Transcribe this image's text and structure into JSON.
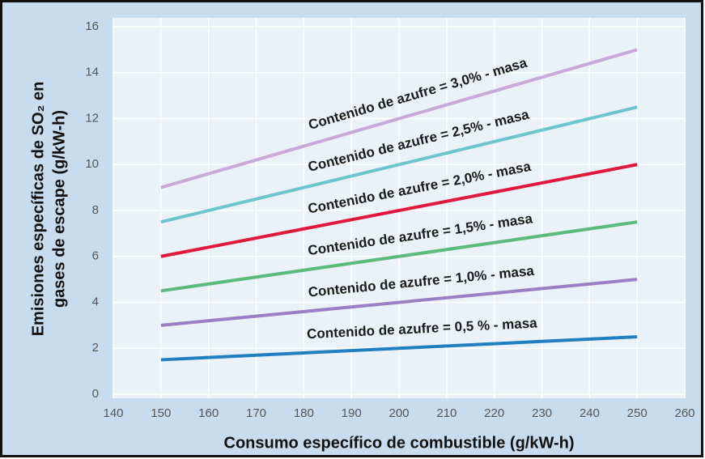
{
  "chart_data": {
    "type": "line",
    "xlabel": "Consumo específico de combustible (g/kW-h)",
    "ylabel": [
      "Emisiones específicas de SO₂ en",
      "gases de escape (g/kW-h)"
    ],
    "x": [
      150,
      250
    ],
    "series": [
      {
        "name": "Contenido de azufre = 0,5 % - masa",
        "color": "#1f7fc0",
        "values": [
          1.5,
          2.5
        ]
      },
      {
        "name": "Contenido de azufre = 1,0% - masa",
        "color": "#9a80c2",
        "values": [
          3,
          5
        ]
      },
      {
        "name": "Contenido de azufre = 1,5% - masa",
        "color": "#5cba7c",
        "values": [
          4.5,
          7.5
        ]
      },
      {
        "name": "Contenido de azufre = 2,0% - masa",
        "color": "#e0183c",
        "values": [
          6,
          10
        ]
      },
      {
        "name": "Contenido de azufre = 2,5% - masa",
        "color": "#6cc6cc",
        "values": [
          7.5,
          12.5
        ]
      },
      {
        "name": "Contenido de azufre = 3,0% - masa",
        "color": "#c8aad8",
        "values": [
          9,
          15
        ]
      }
    ],
    "xlim": [
      140,
      260
    ],
    "xticks": [
      140,
      150,
      160,
      170,
      180,
      190,
      200,
      210,
      220,
      230,
      240,
      250,
      260
    ],
    "ylim": [
      0,
      16
    ],
    "yticks": [
      0,
      2,
      4,
      6,
      8,
      10,
      12,
      14,
      16
    ],
    "grid": true
  }
}
